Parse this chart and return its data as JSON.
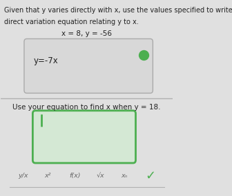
{
  "bg_color": "#e0e0e0",
  "title_line1": "Given that y varies directly with x, use the values specified to write a",
  "title_line2": "direct variation equation relating y to x.",
  "given_values": "x = 8, y = -56",
  "equation": "y=-7x",
  "dot_color": "#4caf50",
  "box1_edge": "#aaaaaa",
  "box1_face": "#d8d8d8",
  "divider_color": "#b0b0b0",
  "instruction2": "Use your equation to find x when y = 18.",
  "box2_edge": "#4caf50",
  "box2_face": "#d4e8d4",
  "cursor_color": "#4caf50",
  "toolbar_items": [
    "y/x",
    "x²",
    "f(x)",
    "√x",
    "xₙ"
  ],
  "checkmark": "✓",
  "checkmark_color": "#4caf50",
  "font_color": "#222222",
  "font_color_toolbar": "#666666"
}
